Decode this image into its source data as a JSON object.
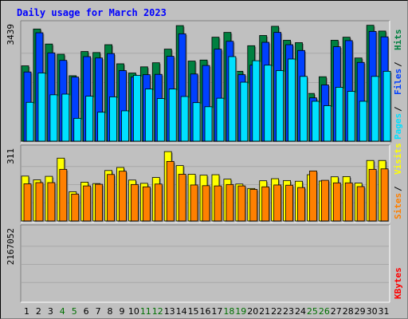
{
  "chart_data": {
    "type": "bar",
    "title": "Daily usage for March 2023",
    "categories": [
      "1",
      "2",
      "3",
      "4",
      "5",
      "6",
      "7",
      "8",
      "9",
      "10",
      "11",
      "12",
      "13",
      "14",
      "15",
      "16",
      "17",
      "18",
      "19",
      "20",
      "21",
      "22",
      "23",
      "24",
      "25",
      "26",
      "27",
      "28",
      "29",
      "30",
      "31"
    ],
    "weekend_categories": [
      "4",
      "5",
      "11",
      "12",
      "18",
      "19",
      "25",
      "26"
    ],
    "panels": [
      {
        "name": "hits-files-pages",
        "ymax_label": "3439",
        "ymax": 3439,
        "right_labels": [
          "Pages",
          "Files",
          "Hits"
        ],
        "series": [
          {
            "name": "Hits",
            "color": "#008040",
            "values": [
              2210,
              3290,
              2850,
              2550,
              1920,
              2630,
              2600,
              2830,
              2270,
              2000,
              2180,
              2300,
              2700,
              3390,
              2350,
              2380,
              3050,
              3190,
              2050,
              2800,
              3100,
              3370,
              2960,
              2890,
              1400,
              1890,
              2960,
              3050,
              2440,
              3400,
              3230
            ]
          },
          {
            "name": "Files",
            "color": "#0040ff",
            "values": [
              2030,
              3180,
              2590,
              2370,
              1880,
              2480,
              2440,
              2570,
              2070,
              1880,
              1950,
              1960,
              2490,
              3150,
              1970,
              2220,
              2700,
              2930,
              1950,
              2230,
              2900,
              3190,
              2830,
              2660,
              1270,
              1650,
              2770,
              2950,
              2310,
              3220,
              3060
            ]
          },
          {
            "name": "Pages",
            "color": "#00e0ff",
            "values": [
              1140,
              2000,
              1360,
              1380,
              670,
              1320,
              850,
              1300,
              890,
              1930,
              1530,
              1250,
              1530,
              1310,
              1130,
              1010,
              1260,
              2480,
              1730,
              2360,
              2230,
              2070,
              2410,
              1900,
              1170,
              1040,
              1580,
              1460,
              1170,
              1900,
              2050
            ]
          }
        ]
      },
      {
        "name": "visits-sites",
        "ymax_label": "311",
        "ymax": 311,
        "right_labels": [
          "Sites",
          "Visits"
        ],
        "series": [
          {
            "name": "Visits",
            "color": "#ffff00",
            "values": [
              192,
              176,
              191,
              269,
              125,
              166,
              160,
              216,
              229,
              175,
              161,
              186,
              297,
              237,
              200,
              196,
              198,
              179,
              158,
              139,
              172,
              181,
              173,
              170,
              198,
              171,
              189,
              190,
              162,
              259,
              259
            ]
          },
          {
            "name": "Sites",
            "color": "#ff8000",
            "values": [
              159,
              164,
              164,
              221,
              115,
              150,
              157,
              199,
              213,
              156,
              146,
              158,
              255,
              200,
              154,
              151,
              150,
              156,
              150,
              135,
              146,
              154,
              153,
              143,
              214,
              174,
              163,
              163,
              147,
              221,
              223
            ]
          }
        ]
      },
      {
        "name": "kbytes",
        "ymax_label": "2167052",
        "ymax": 2167052,
        "right_labels": [
          "KBytes"
        ],
        "series": [
          {
            "name": "KBytes",
            "color": "#ff0000",
            "values": [
              520,
              480,
              1040,
              500,
              60,
              1850,
              1050,
              340,
              570,
              480,
              220,
              210,
              270,
              620,
              290,
              160,
              260,
              300,
              160,
              690,
              140,
              210,
              170,
              230,
              160,
              90,
              240,
              280,
              330,
              290,
              570
            ]
          }
        ]
      }
    ]
  },
  "colors": {
    "title": "#0000ff",
    "weekend_day": "#007000",
    "weekday_day": "#000000",
    "pages_label": "#00e0ff",
    "files_label": "#0040ff",
    "hits_label": "#008040",
    "sites_label": "#ff8000",
    "visits_label": "#ffff00",
    "kbytes_label": "#ff0000",
    "separator": "#000000",
    "label_sep": "#000000"
  }
}
